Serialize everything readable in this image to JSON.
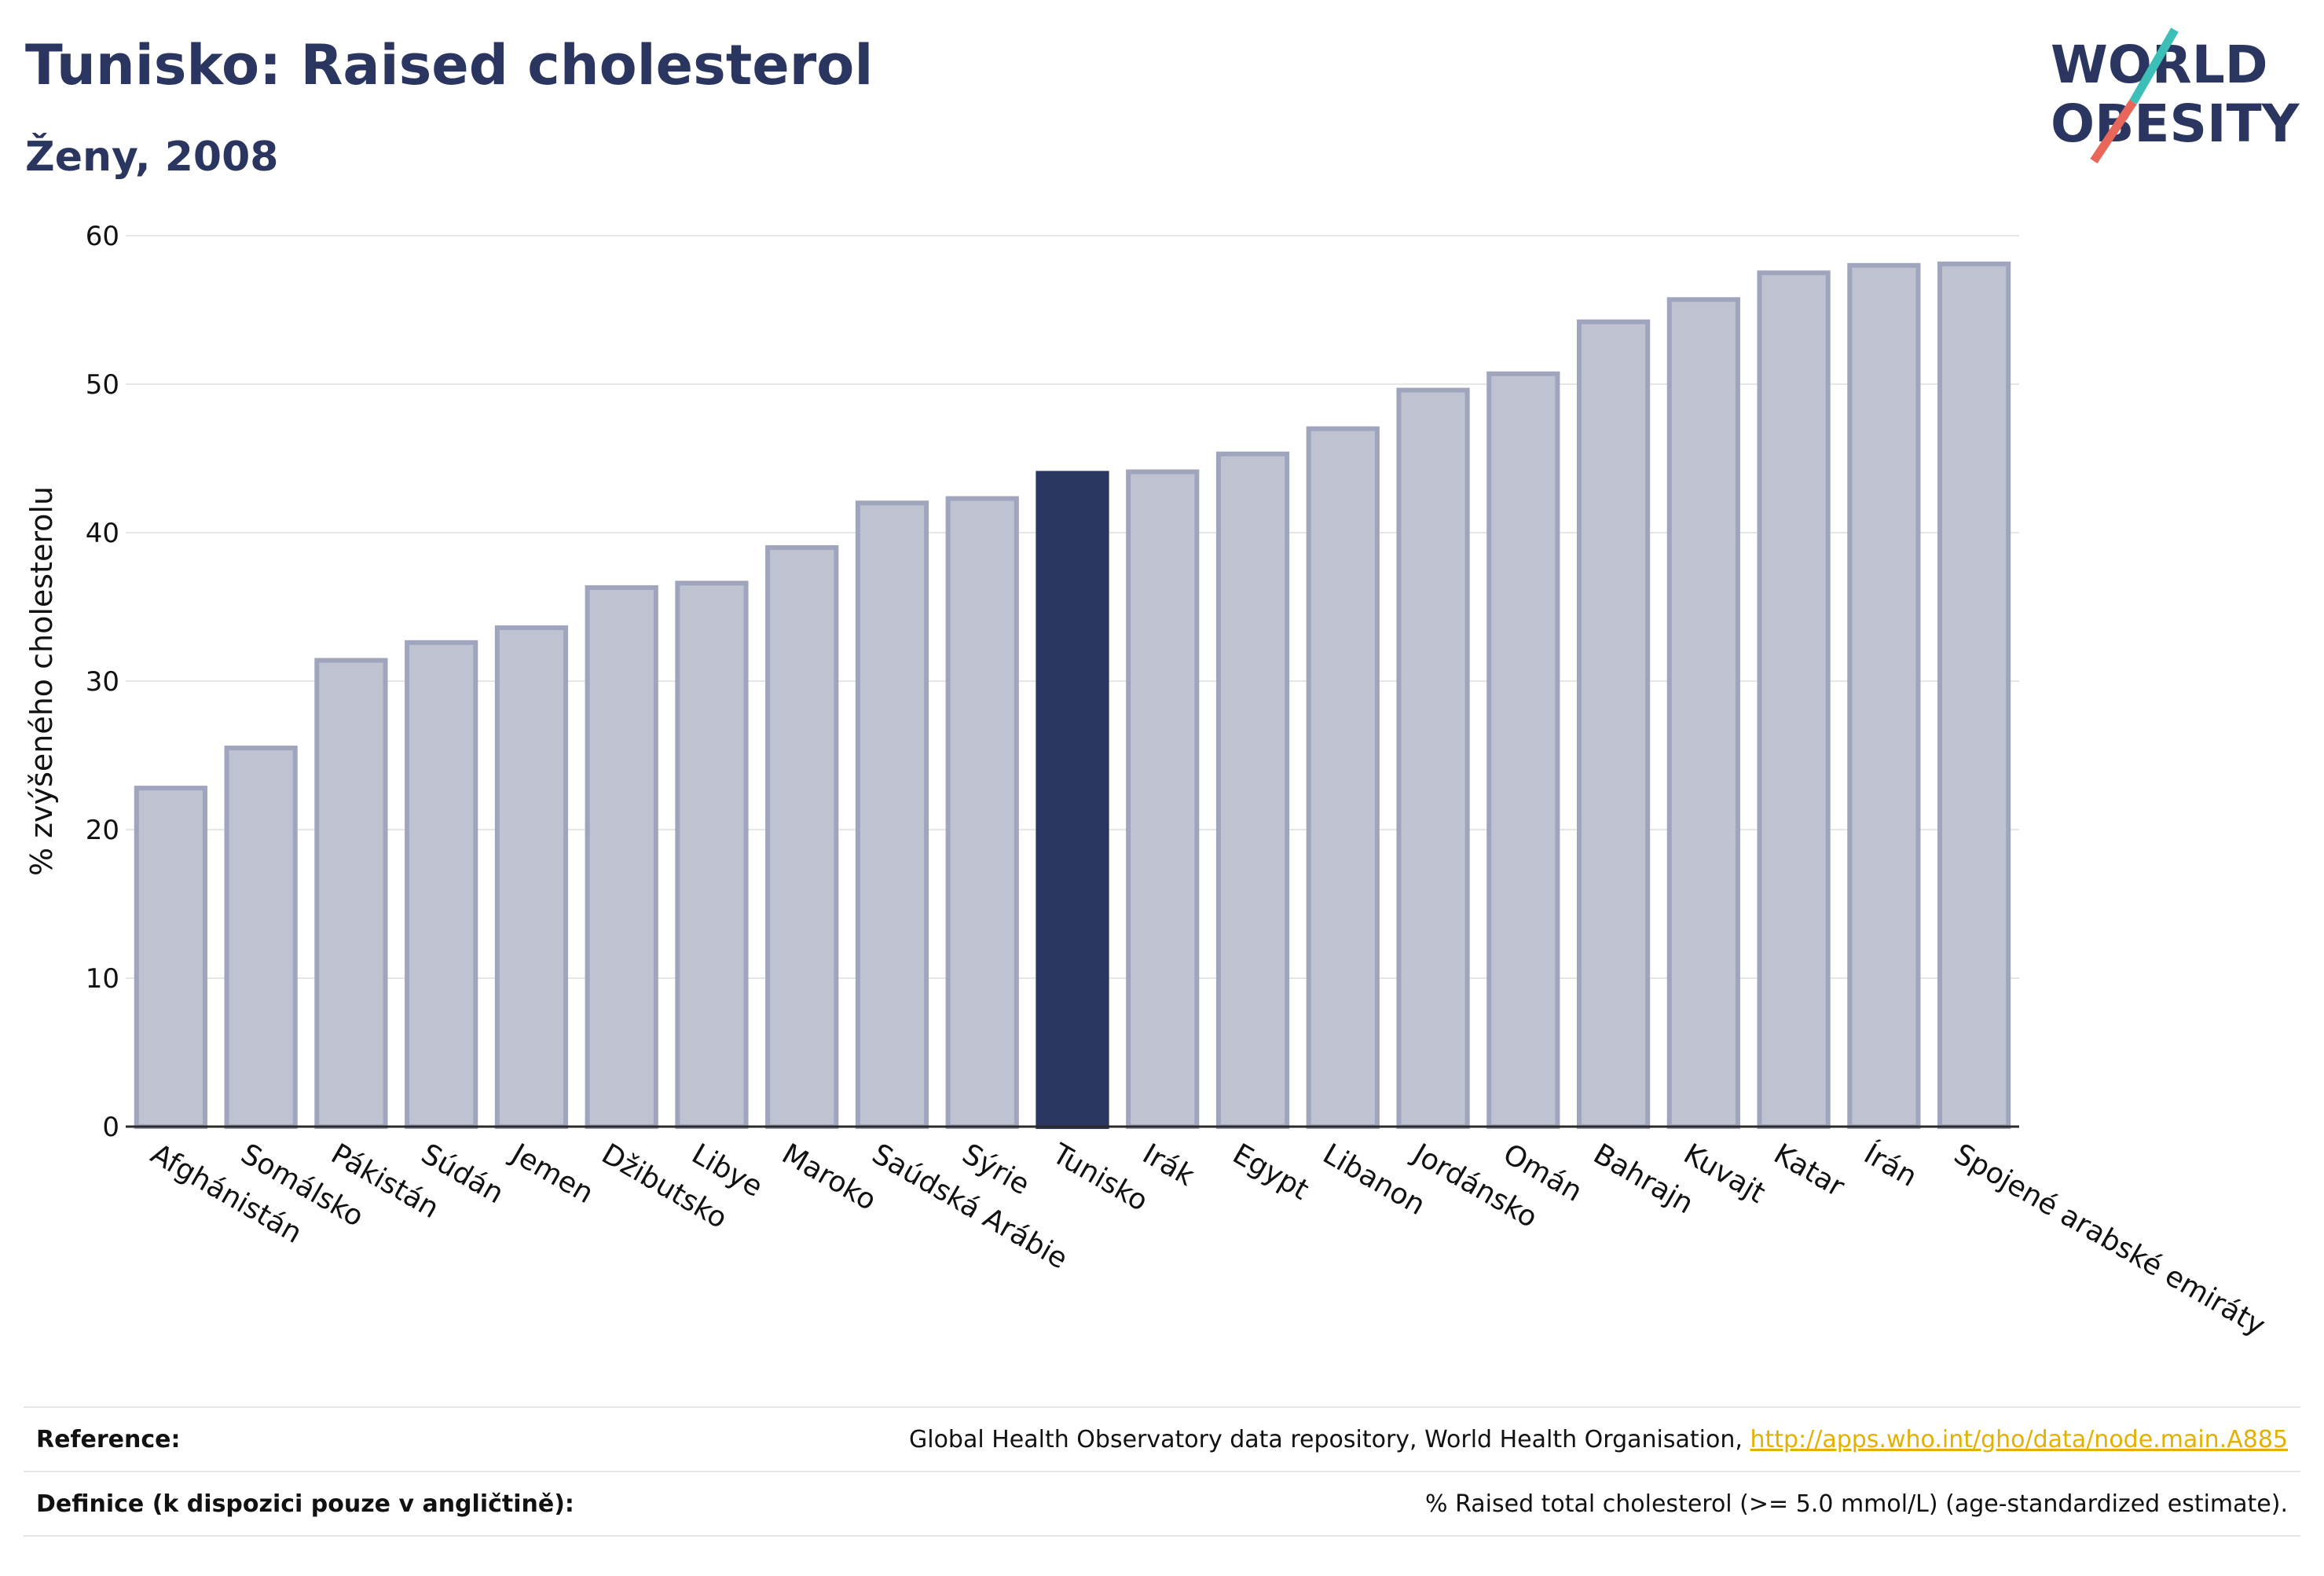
{
  "header": {
    "title": "Tunisko: Raised cholesterol",
    "subtitle": "Ženy, 2008"
  },
  "logo": {
    "line1": "WORLD",
    "line2": "OBESITY"
  },
  "colors": {
    "bar_default": "#bfc3d1",
    "bar_default_stroke": "#9fa5bd",
    "bar_highlight": "#2a3660",
    "axis_text": "#111111",
    "grid": "#e6e6e6",
    "logo_teal": "#3bbfb7",
    "logo_coral": "#e8665a"
  },
  "chart_data": {
    "type": "bar",
    "title": "Tunisko: Raised cholesterol",
    "subtitle": "Ženy, 2008",
    "xlabel": "",
    "ylabel": "% zvýšeného cholesterolu",
    "ylim": [
      0,
      60
    ],
    "yticks": [
      0,
      10,
      20,
      30,
      40,
      50,
      60
    ],
    "grid": true,
    "highlight": "Tunisko",
    "categories": [
      "Afghánistán",
      "Somálsko",
      "Pákistán",
      "Súdán",
      "Jemen",
      "Džibutsko",
      "Libye",
      "Maroko",
      "Saúdská Arábie",
      "Sýrie",
      "Tunisko",
      "Irák",
      "Egypt",
      "Libanon",
      "Jordánsko",
      "Omán",
      "Bahrajn",
      "Kuvajt",
      "Katar",
      "Írán",
      "Spojené arabské emiráty"
    ],
    "values": [
      22.8,
      25.5,
      31.4,
      32.6,
      33.6,
      36.3,
      36.6,
      39.0,
      42.0,
      42.3,
      44.0,
      44.1,
      45.3,
      47.0,
      49.6,
      50.7,
      54.2,
      55.7,
      57.5,
      58.0,
      58.1
    ]
  },
  "footer": {
    "reference_label": "Reference:",
    "reference_text": "Global Health Observatory data repository, World Health Organisation,",
    "reference_link": "http://apps.who.int/gho/data/node.main.A885",
    "definition_label": "Definice (k dispozici pouze v angličtině):",
    "definition_text": "% Raised total cholesterol (>= 5.0 mmol/L) (age-standardized estimate)."
  }
}
